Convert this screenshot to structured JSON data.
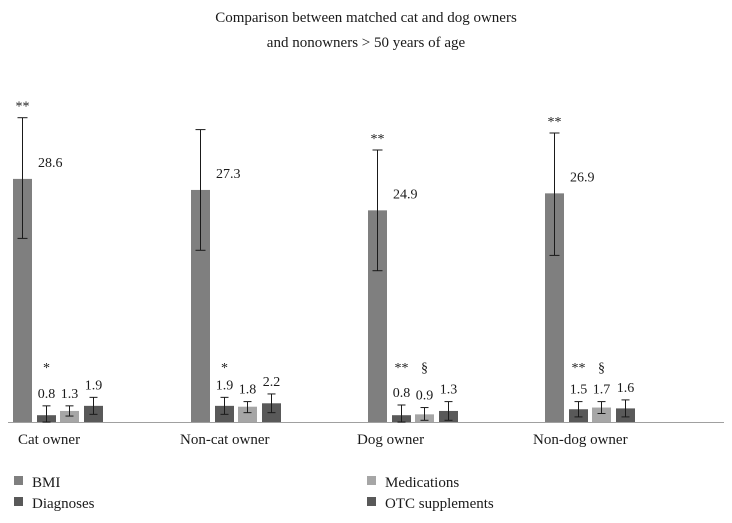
{
  "chart_data": {
    "type": "bar",
    "title_lines": [
      "Comparison between matched cat and dog owners",
      "and nonowners > 50 years of age"
    ],
    "categories": [
      "Cat owner",
      "Non-cat owner",
      "Dog owner",
      "Non-dog owner"
    ],
    "series": [
      {
        "name": "BMI",
        "color": "#7f7f7f",
        "values": [
          28.6,
          27.3,
          24.9,
          26.9
        ],
        "labels": [
          "28.6",
          "27.3",
          "24.9",
          "26.9"
        ],
        "err_low": [
          21.6,
          20.2,
          17.8,
          19.6
        ],
        "err_high": [
          35.8,
          34.4,
          32.0,
          34.0
        ],
        "marks": [
          "**",
          "",
          "**",
          "**"
        ]
      },
      {
        "name": "Diagnoses",
        "color": "#595959",
        "values": [
          0.8,
          1.9,
          0.8,
          1.5
        ],
        "labels": [
          "0.8",
          "1.9",
          "0.8",
          "1.5"
        ],
        "err_low": [
          0.0,
          0.9,
          0.0,
          0.6
        ],
        "err_high": [
          1.9,
          2.9,
          2.0,
          2.4
        ],
        "marks": [
          "*",
          "*",
          "**",
          "**"
        ]
      },
      {
        "name": "Medications",
        "color": "#a6a6a6",
        "values": [
          1.3,
          1.8,
          0.9,
          1.7
        ],
        "labels": [
          "1.3",
          "1.8",
          "0.9",
          "1.7"
        ],
        "err_low": [
          0.7,
          1.1,
          0.2,
          1.0
        ],
        "err_high": [
          1.9,
          2.4,
          1.7,
          2.4
        ],
        "marks": [
          "",
          "",
          "§",
          "§"
        ]
      },
      {
        "name": "OTC supplements",
        "color": "#595959",
        "values": [
          1.9,
          2.2,
          1.3,
          1.6
        ],
        "labels": [
          "1.9",
          "2.2",
          "1.3",
          "1.6"
        ],
        "err_low": [
          0.9,
          1.1,
          0.2,
          0.6
        ],
        "err_high": [
          2.9,
          3.3,
          2.4,
          2.6
        ],
        "marks": [
          "",
          "",
          "",
          ""
        ]
      }
    ],
    "ylim": [
      0,
      36
    ],
    "grid": false,
    "legend_position": "bottom"
  }
}
